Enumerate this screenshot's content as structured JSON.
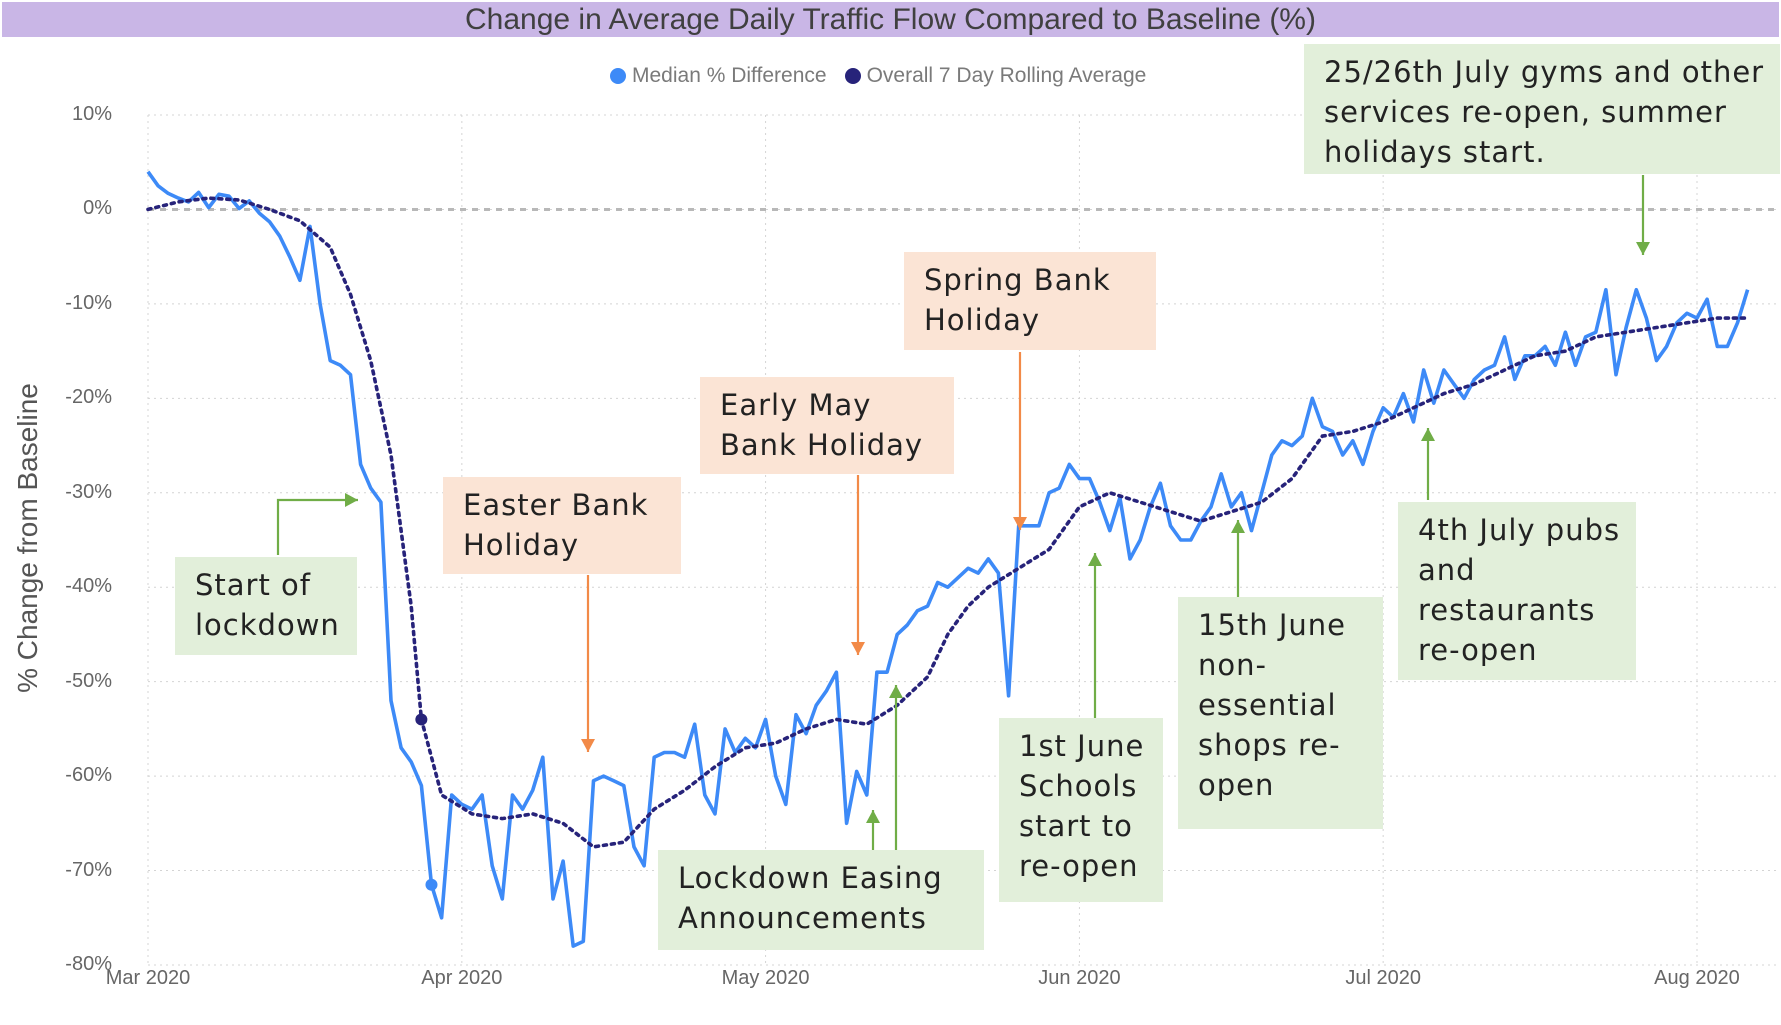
{
  "title": "Change in Average Daily Traffic Flow Compared to Baseline (%)",
  "y_axis_label": "% Change from Baseline",
  "legend": [
    {
      "label": "Median % Difference",
      "color": "#3d8af7"
    },
    {
      "label": "Overall 7 Day Rolling Average",
      "color": "#27237a"
    }
  ],
  "colors": {
    "title_bar": "#c9b6e6",
    "median_line": "#3d8af7",
    "rolling_line": "#27237a",
    "orange_arrow": "#f28a48",
    "green_arrow": "#70ad47",
    "orange_box": "#fbe4d5",
    "green_box": "#e2efda"
  },
  "y_ticks": [
    "10%",
    "0%",
    "-10%",
    "-20%",
    "-30%",
    "-40%",
    "-50%",
    "-60%",
    "-70%",
    "-80%"
  ],
  "x_ticks": [
    "Mar 2020",
    "Apr 2020",
    "May 2020",
    "Jun 2020",
    "Jul 2020",
    "Aug 2020"
  ],
  "annotations": [
    {
      "id": "start-lockdown",
      "lines": [
        "Start of",
        "lockdown"
      ],
      "style": "green"
    },
    {
      "id": "easter",
      "lines": [
        "Easter Bank",
        "Holiday"
      ],
      "style": "orange"
    },
    {
      "id": "early-may",
      "lines": [
        "Early May",
        "Bank Holiday"
      ],
      "style": "orange"
    },
    {
      "id": "spring",
      "lines": [
        "Spring Bank",
        "Holiday"
      ],
      "style": "orange"
    },
    {
      "id": "lockdown-easing",
      "lines": [
        "Lockdown Easing",
        "Announcements"
      ],
      "style": "green"
    },
    {
      "id": "schools",
      "lines": [
        "1st June",
        "Schools",
        "start to",
        "re-open"
      ],
      "style": "green"
    },
    {
      "id": "shops",
      "lines": [
        "15th June",
        "non-",
        "essential",
        "shops re-",
        "open"
      ],
      "style": "green"
    },
    {
      "id": "pubs",
      "lines": [
        "4th July pubs",
        "and",
        "restaurants",
        "re-open"
      ],
      "style": "green"
    },
    {
      "id": "gyms",
      "lines": [
        "25/26th July gyms and other",
        "services re-open, summer",
        "holidays start."
      ],
      "style": "green"
    }
  ],
  "chart_data": {
    "type": "line",
    "x_axis": "date",
    "ylim": [
      -80,
      10
    ],
    "xlim": [
      "2020-03-01",
      "2020-08-09"
    ],
    "grid": true,
    "legend_position": "top",
    "baseline": 0,
    "series": [
      {
        "name": "Median % Difference",
        "points": [
          [
            "2020-03-01",
            4
          ],
          [
            "2020-03-02",
            2.5
          ],
          [
            "2020-03-03",
            1.7
          ],
          [
            "2020-03-04",
            1.2
          ],
          [
            "2020-03-05",
            0.8
          ],
          [
            "2020-03-06",
            1.8
          ],
          [
            "2020-03-07",
            0.2
          ],
          [
            "2020-03-08",
            1.6
          ],
          [
            "2020-03-09",
            1.4
          ],
          [
            "2020-03-10",
            0.1
          ],
          [
            "2020-03-11",
            0.9
          ],
          [
            "2020-03-12",
            -0.4
          ],
          [
            "2020-03-13",
            -1.3
          ],
          [
            "2020-03-14",
            -2.8
          ],
          [
            "2020-03-15",
            -5
          ],
          [
            "2020-03-16",
            -7.5
          ],
          [
            "2020-03-17",
            -1.8
          ],
          [
            "2020-03-18",
            -10
          ],
          [
            "2020-03-19",
            -16
          ],
          [
            "2020-03-20",
            -16.5
          ],
          [
            "2020-03-21",
            -17.5
          ],
          [
            "2020-03-22",
            -27
          ],
          [
            "2020-03-23",
            -29.5
          ],
          [
            "2020-03-24",
            -31
          ],
          [
            "2020-03-25",
            -52
          ],
          [
            "2020-03-26",
            -57
          ],
          [
            "2020-03-27",
            -58.5
          ],
          [
            "2020-03-28",
            -61
          ],
          [
            "2020-03-29",
            -71.5
          ],
          [
            "2020-03-30",
            -75
          ],
          [
            "2020-03-31",
            -62
          ],
          [
            "2020-04-01",
            -63
          ],
          [
            "2020-04-02",
            -63.5
          ],
          [
            "2020-04-03",
            -62
          ],
          [
            "2020-04-04",
            -69.5
          ],
          [
            "2020-04-05",
            -73
          ],
          [
            "2020-04-06",
            -62
          ],
          [
            "2020-04-07",
            -63.5
          ],
          [
            "2020-04-08",
            -61.5
          ],
          [
            "2020-04-09",
            -58
          ],
          [
            "2020-04-10",
            -73
          ],
          [
            "2020-04-11",
            -69
          ],
          [
            "2020-04-12",
            -78
          ],
          [
            "2020-04-13",
            -77.5
          ],
          [
            "2020-04-14",
            -60.5
          ],
          [
            "2020-04-15",
            -60
          ],
          [
            "2020-04-16",
            -60.5
          ],
          [
            "2020-04-17",
            -61
          ],
          [
            "2020-04-18",
            -67.5
          ],
          [
            "2020-04-19",
            -69.5
          ],
          [
            "2020-04-20",
            -58
          ],
          [
            "2020-04-21",
            -57.5
          ],
          [
            "2020-04-22",
            -57.5
          ],
          [
            "2020-04-23",
            -58
          ],
          [
            "2020-04-24",
            -54.5
          ],
          [
            "2020-04-25",
            -62
          ],
          [
            "2020-04-26",
            -64
          ],
          [
            "2020-04-27",
            -55
          ],
          [
            "2020-04-28",
            -57.5
          ],
          [
            "2020-04-29",
            -56
          ],
          [
            "2020-04-30",
            -57
          ],
          [
            "2020-05-01",
            -54
          ],
          [
            "2020-05-02",
            -60
          ],
          [
            "2020-05-03",
            -63
          ],
          [
            "2020-05-04",
            -53.5
          ],
          [
            "2020-05-05",
            -55.5
          ],
          [
            "2020-05-06",
            -52.5
          ],
          [
            "2020-05-07",
            -51
          ],
          [
            "2020-05-08",
            -49
          ],
          [
            "2020-05-09",
            -65
          ],
          [
            "2020-05-10",
            -59.5
          ],
          [
            "2020-05-11",
            -62
          ],
          [
            "2020-05-12",
            -49
          ],
          [
            "2020-05-13",
            -49
          ],
          [
            "2020-05-14",
            -45
          ],
          [
            "2020-05-15",
            -44
          ],
          [
            "2020-05-16",
            -42.5
          ],
          [
            "2020-05-17",
            -42
          ],
          [
            "2020-05-18",
            -39.5
          ],
          [
            "2020-05-19",
            -40
          ],
          [
            "2020-05-20",
            -39
          ],
          [
            "2020-05-21",
            -38
          ],
          [
            "2020-05-22",
            -38.5
          ],
          [
            "2020-05-23",
            -37
          ],
          [
            "2020-05-24",
            -38.5
          ],
          [
            "2020-05-25",
            -51.5
          ],
          [
            "2020-05-26",
            -33.5
          ],
          [
            "2020-05-27",
            -33.5
          ],
          [
            "2020-05-28",
            -33.5
          ],
          [
            "2020-05-29",
            -30
          ],
          [
            "2020-05-30",
            -29.5
          ],
          [
            "2020-05-31",
            -27
          ],
          [
            "2020-06-01",
            -28.5
          ],
          [
            "2020-06-02",
            -28.5
          ],
          [
            "2020-06-03",
            -31
          ],
          [
            "2020-06-04",
            -34
          ],
          [
            "2020-06-05",
            -30.5
          ],
          [
            "2020-06-06",
            -37
          ],
          [
            "2020-06-07",
            -35
          ],
          [
            "2020-06-08",
            -31.5
          ],
          [
            "2020-06-09",
            -29
          ],
          [
            "2020-06-10",
            -33.5
          ],
          [
            "2020-06-11",
            -35
          ],
          [
            "2020-06-12",
            -35
          ],
          [
            "2020-06-13",
            -33
          ],
          [
            "2020-06-14",
            -31.5
          ],
          [
            "2020-06-15",
            -28
          ],
          [
            "2020-06-16",
            -31.5
          ],
          [
            "2020-06-17",
            -30
          ],
          [
            "2020-06-18",
            -34
          ],
          [
            "2020-06-19",
            -30
          ],
          [
            "2020-06-20",
            -26
          ],
          [
            "2020-06-21",
            -24.5
          ],
          [
            "2020-06-22",
            -25
          ],
          [
            "2020-06-23",
            -24
          ],
          [
            "2020-06-24",
            -20
          ],
          [
            "2020-06-25",
            -23
          ],
          [
            "2020-06-26",
            -23.5
          ],
          [
            "2020-06-27",
            -26
          ],
          [
            "2020-06-28",
            -24.5
          ],
          [
            "2020-06-29",
            -27
          ],
          [
            "2020-06-30",
            -23.5
          ],
          [
            "2020-07-01",
            -21
          ],
          [
            "2020-07-02",
            -22
          ],
          [
            "2020-07-03",
            -19.5
          ],
          [
            "2020-07-04",
            -22.5
          ],
          [
            "2020-07-05",
            -17
          ],
          [
            "2020-07-06",
            -20.5
          ],
          [
            "2020-07-07",
            -17
          ],
          [
            "2020-07-08",
            -18.5
          ],
          [
            "2020-07-09",
            -20
          ],
          [
            "2020-07-10",
            -18
          ],
          [
            "2020-07-11",
            -17
          ],
          [
            "2020-07-12",
            -16.5
          ],
          [
            "2020-07-13",
            -13.5
          ],
          [
            "2020-07-14",
            -18
          ],
          [
            "2020-07-15",
            -15.5
          ],
          [
            "2020-07-16",
            -15.5
          ],
          [
            "2020-07-17",
            -14.5
          ],
          [
            "2020-07-18",
            -16.5
          ],
          [
            "2020-07-19",
            -13
          ],
          [
            "2020-07-20",
            -16.5
          ],
          [
            "2020-07-21",
            -13.5
          ],
          [
            "2020-07-22",
            -13
          ],
          [
            "2020-07-23",
            -8.5
          ],
          [
            "2020-07-24",
            -17.5
          ],
          [
            "2020-07-25",
            -12.5
          ],
          [
            "2020-07-26",
            -8.5
          ],
          [
            "2020-07-27",
            -11.5
          ],
          [
            "2020-07-28",
            -16
          ],
          [
            "2020-07-29",
            -14.5
          ],
          [
            "2020-07-30",
            -12
          ],
          [
            "2020-07-31",
            -11
          ],
          [
            "2020-08-01",
            -11.5
          ],
          [
            "2020-08-02",
            -9.5
          ],
          [
            "2020-08-03",
            -14.5
          ],
          [
            "2020-08-04",
            -14.5
          ],
          [
            "2020-08-05",
            -12
          ],
          [
            "2020-08-06",
            -8.5
          ]
        ]
      },
      {
        "name": "Overall 7 Day Rolling Average",
        "points": [
          [
            "2020-03-01",
            0
          ],
          [
            "2020-03-04",
            0.8
          ],
          [
            "2020-03-07",
            1.2
          ],
          [
            "2020-03-10",
            1.0
          ],
          [
            "2020-03-13",
            0
          ],
          [
            "2020-03-16",
            -1.2
          ],
          [
            "2020-03-19",
            -4
          ],
          [
            "2020-03-21",
            -9
          ],
          [
            "2020-03-23",
            -16
          ],
          [
            "2020-03-25",
            -26
          ],
          [
            "2020-03-27",
            -42
          ],
          [
            "2020-03-28",
            -54
          ],
          [
            "2020-03-30",
            -62
          ],
          [
            "2020-04-02",
            -64
          ],
          [
            "2020-04-05",
            -64.5
          ],
          [
            "2020-04-08",
            -64
          ],
          [
            "2020-04-11",
            -65
          ],
          [
            "2020-04-14",
            -67.5
          ],
          [
            "2020-04-17",
            -67
          ],
          [
            "2020-04-20",
            -63.5
          ],
          [
            "2020-04-23",
            -61.5
          ],
          [
            "2020-04-26",
            -59
          ],
          [
            "2020-04-29",
            -57
          ],
          [
            "2020-05-02",
            -56.5
          ],
          [
            "2020-05-05",
            -55
          ],
          [
            "2020-05-08",
            -54
          ],
          [
            "2020-05-11",
            -54.5
          ],
          [
            "2020-05-14",
            -52.5
          ],
          [
            "2020-05-17",
            -49.5
          ],
          [
            "2020-05-19",
            -45
          ],
          [
            "2020-05-21",
            -42
          ],
          [
            "2020-05-23",
            -40
          ],
          [
            "2020-05-26",
            -38
          ],
          [
            "2020-05-29",
            -36
          ],
          [
            "2020-06-01",
            -31.5
          ],
          [
            "2020-06-04",
            -30
          ],
          [
            "2020-06-07",
            -31
          ],
          [
            "2020-06-10",
            -32
          ],
          [
            "2020-06-13",
            -33
          ],
          [
            "2020-06-16",
            -32
          ],
          [
            "2020-06-19",
            -31
          ],
          [
            "2020-06-22",
            -28.5
          ],
          [
            "2020-06-25",
            -24
          ],
          [
            "2020-06-28",
            -23.5
          ],
          [
            "2020-07-01",
            -22.5
          ],
          [
            "2020-07-04",
            -21
          ],
          [
            "2020-07-07",
            -19.5
          ],
          [
            "2020-07-10",
            -18.5
          ],
          [
            "2020-07-13",
            -17
          ],
          [
            "2020-07-16",
            -15.5
          ],
          [
            "2020-07-19",
            -15
          ],
          [
            "2020-07-22",
            -13.5
          ],
          [
            "2020-07-25",
            -13
          ],
          [
            "2020-07-28",
            -12.5
          ],
          [
            "2020-07-31",
            -12
          ],
          [
            "2020-08-03",
            -11.5
          ],
          [
            "2020-08-06",
            -11.5
          ]
        ]
      }
    ]
  }
}
